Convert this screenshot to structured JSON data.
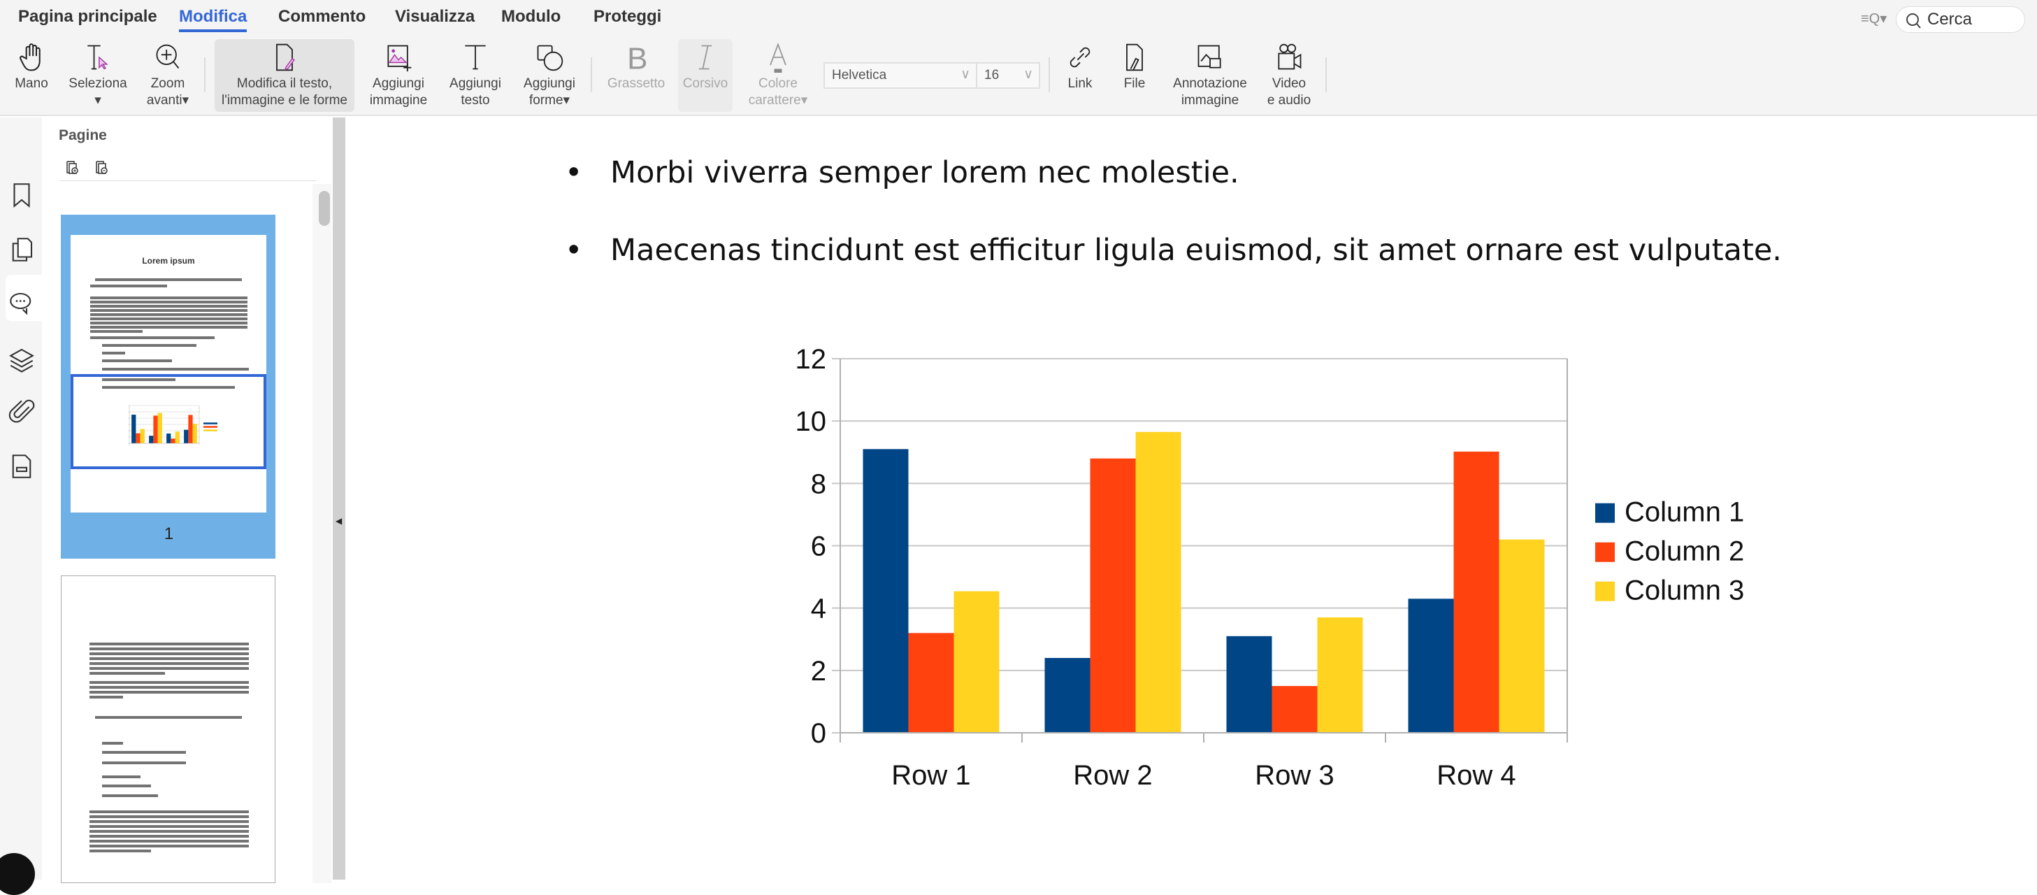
{
  "menu": {
    "tabs": [
      "Pagina principale",
      "Modifica",
      "Commento",
      "Visualizza",
      "Modulo",
      "Proteggi"
    ],
    "active": "Modifica"
  },
  "search": {
    "placeholder": "Cerca"
  },
  "toolbar": {
    "hand": "Mano",
    "select": "Seleziona",
    "zoom": [
      "Zoom",
      "avanti"
    ],
    "edit": [
      "Modifica il testo,",
      "l'immagine e le forme"
    ],
    "add_image": [
      "Aggiungi",
      "immagine"
    ],
    "add_text": [
      "Aggiungi",
      "testo"
    ],
    "add_shapes": [
      "Aggiungi",
      "forme"
    ],
    "bold": "Grassetto",
    "italic": "Corsivo",
    "font_color": [
      "Colore",
      "carattere"
    ],
    "font": "Helvetica",
    "size": "16",
    "link": "Link",
    "file": "File",
    "image_annotation": [
      "Annotazione",
      "immagine"
    ],
    "video": [
      "Video",
      "e audio"
    ]
  },
  "panel": {
    "title": "Pagine",
    "page1_label": "1",
    "thumb_title": "Lorem ipsum"
  },
  "document": {
    "bullets": [
      "Morbi viverra semper lorem nec molestie.",
      "Maecenas tincidunt est efficitur ligula euismod, sit amet ornare est vulputate."
    ]
  },
  "chart_data": {
    "type": "bar",
    "categories": [
      "Row 1",
      "Row 2",
      "Row 3",
      "Row 4"
    ],
    "series": [
      {
        "name": "Column 1",
        "color": "#004586",
        "values": [
          9.1,
          2.4,
          3.1,
          4.3
        ]
      },
      {
        "name": "Column 2",
        "color": "#ff420e",
        "values": [
          3.2,
          8.8,
          1.5,
          9.02
        ]
      },
      {
        "name": "Column 3",
        "color": "#ffd320",
        "values": [
          4.54,
          9.65,
          3.7,
          6.2
        ]
      }
    ],
    "ylim": [
      0,
      12
    ],
    "yticks": [
      0,
      2,
      4,
      6,
      8,
      10,
      12
    ],
    "grid": true,
    "legend": "right"
  },
  "colors": {
    "accent": "#3367d6",
    "thumb_selected": "#6fb1e7"
  }
}
